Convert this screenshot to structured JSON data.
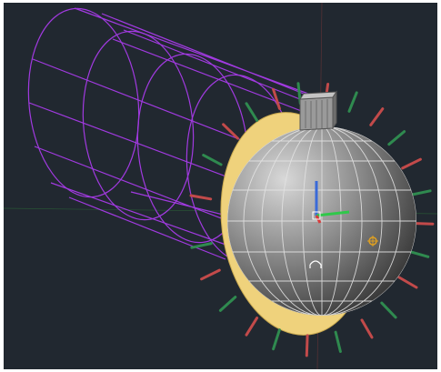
{
  "viewport": {
    "background": "#212830",
    "frame_color": "#ffffff"
  },
  "scene": {
    "objects": [
      {
        "name": "cylinder-wireframe",
        "kind": "wireframe-cylinder",
        "color": "#a13ae0"
      },
      {
        "name": "collar-ring",
        "kind": "solid-ring",
        "color": "#efd27c"
      },
      {
        "name": "sphere",
        "kind": "shaded-sphere",
        "color": "#8c8c8c",
        "mesh_color": "#e4e4e4"
      },
      {
        "name": "mount-box",
        "kind": "box",
        "color": "#9a9a9a"
      },
      {
        "name": "radial-pins",
        "kind": "pin-array",
        "colors": [
          "#c24a4a",
          "#2f8a4f"
        ]
      }
    ],
    "gizmo": {
      "x_color": "#2fc84a",
      "y_color": "#3a6ad8",
      "z_color": "#d83a3a"
    },
    "world_axes": {
      "x_color": "#8a3a3a",
      "y_color": "#2f7a3a"
    },
    "markers": [
      {
        "name": "pivot-marker",
        "icon": "target-icon",
        "color": "#e0a020"
      },
      {
        "name": "ucs-marker",
        "glyph": "∩",
        "color": "#ffffff"
      }
    ]
  }
}
